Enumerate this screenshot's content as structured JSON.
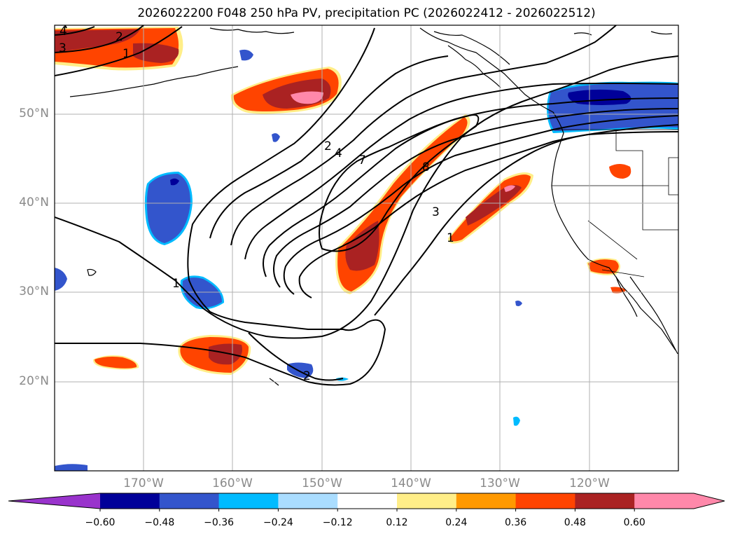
{
  "title": "2026022200 F048 250 hPa PV, precipitation PC (2026022412 - 2026022512)",
  "lat_labels": [
    "50°N",
    "40°N",
    "30°N",
    "20°N"
  ],
  "lon_labels": [
    "170°W",
    "160°W",
    "150°W",
    "140°W",
    "130°W",
    "120°W"
  ],
  "contour_labels": [
    "4",
    "3",
    "2",
    "1",
    "2",
    "4",
    "7",
    "8",
    "3",
    "1",
    "1",
    "2"
  ],
  "colorbar": {
    "ticks": [
      "−0.60",
      "−0.48",
      "−0.36",
      "−0.24",
      "−0.12",
      "0.12",
      "0.24",
      "0.36",
      "0.48",
      "0.60"
    ],
    "colors": [
      "#9933cc",
      "#000099",
      "#3355cc",
      "#00bbff",
      "#aaddff",
      "#ffffff",
      "#ffee88",
      "#ff9900",
      "#ff4400",
      "#aa2222",
      "#ff88aa",
      "#ff88aa"
    ],
    "extend": "both"
  },
  "colors": {
    "grid": "#b0b0b0",
    "contour": "#000000",
    "coast": "#000000"
  }
}
